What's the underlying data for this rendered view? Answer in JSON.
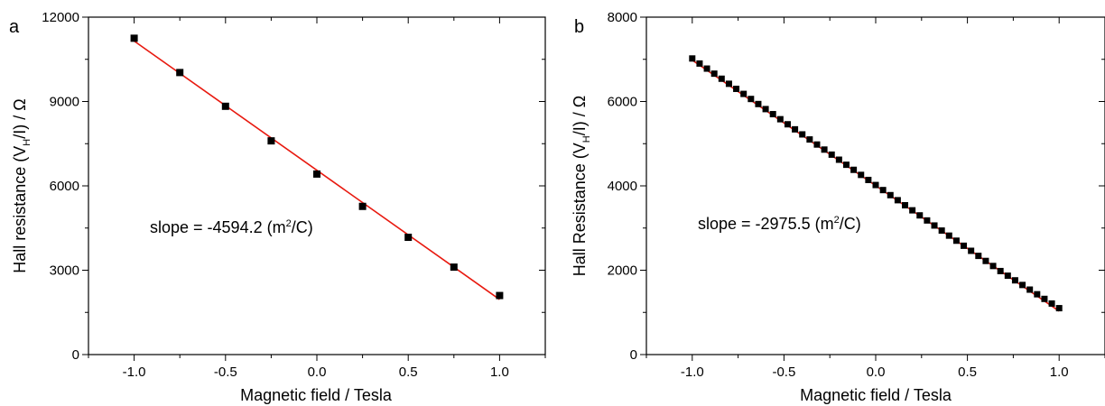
{
  "chart_data": [
    {
      "panel": "a",
      "type": "scatter",
      "xlabel": "Magnetic field / Tesla",
      "ylabel": {
        "pre": "Hall resistance (V",
        "sub": "H",
        "post": "/I) / Ω"
      },
      "xlim": [
        -1.25,
        1.25
      ],
      "ylim": [
        0,
        12000
      ],
      "xticks": [
        -1.0,
        -0.5,
        0.0,
        0.5,
        1.0
      ],
      "xtick_labels": [
        "-1.0",
        "-0.5",
        "0.0",
        "0.5",
        "1.0"
      ],
      "yticks": [
        0,
        3000,
        6000,
        9000,
        12000
      ],
      "ytick_labels": [
        "0",
        "3000",
        "6000",
        "9000",
        "12000"
      ],
      "annotation": {
        "pre": "slope = -4594.2 (m",
        "sup": "2",
        "post": "/C)"
      },
      "series": [
        {
          "kind": "points",
          "color": "#000000",
          "x": [
            -1.0,
            -0.75,
            -0.5,
            -0.25,
            0.0,
            0.25,
            0.5,
            0.75,
            1.0
          ],
          "y": [
            11250,
            10030,
            8830,
            7600,
            6420,
            5270,
            4170,
            3110,
            2100
          ]
        },
        {
          "kind": "fit",
          "color": "#e8190f",
          "x": [
            -1.0,
            1.0
          ],
          "y": [
            11150,
            1960
          ]
        }
      ]
    },
    {
      "panel": "b",
      "type": "scatter",
      "xlabel": "Magnetic field / Tesla",
      "ylabel": {
        "pre": "Hall Resistance (V",
        "sub": "H",
        "post": "/I) / Ω"
      },
      "xlim": [
        -1.25,
        1.25
      ],
      "ylim": [
        0,
        8000
      ],
      "xticks": [
        -1.0,
        -0.5,
        0.0,
        0.5,
        1.0
      ],
      "xtick_labels": [
        "-1.0",
        "-0.5",
        "0.0",
        "0.5",
        "1.0"
      ],
      "yticks": [
        0,
        2000,
        4000,
        6000,
        8000
      ],
      "ytick_labels": [
        "0",
        "2000",
        "4000",
        "6000",
        "8000"
      ],
      "annotation": {
        "pre": "slope = -2975.5 (m",
        "sup": "2",
        "post": "/C)"
      },
      "series": [
        {
          "kind": "points",
          "color": "#000000",
          "x": [
            -1.0,
            -0.96,
            -0.92,
            -0.88,
            -0.84,
            -0.8,
            -0.76,
            -0.72,
            -0.68,
            -0.64,
            -0.6,
            -0.56,
            -0.52,
            -0.48,
            -0.44,
            -0.4,
            -0.36,
            -0.32,
            -0.28,
            -0.24,
            -0.2,
            -0.16,
            -0.12,
            -0.08,
            -0.04,
            0.0,
            0.04,
            0.08,
            0.12,
            0.16,
            0.2,
            0.24,
            0.28,
            0.32,
            0.36,
            0.4,
            0.44,
            0.48,
            0.52,
            0.56,
            0.6,
            0.64,
            0.68,
            0.72,
            0.76,
            0.8,
            0.84,
            0.88,
            0.92,
            0.96,
            1.0
          ],
          "y": [
            7020,
            6900,
            6780,
            6660,
            6540,
            6420,
            6300,
            6180,
            6060,
            5940,
            5820,
            5700,
            5580,
            5460,
            5340,
            5220,
            5100,
            4980,
            4860,
            4740,
            4620,
            4500,
            4380,
            4260,
            4140,
            4020,
            3900,
            3780,
            3660,
            3540,
            3420,
            3300,
            3180,
            3060,
            2940,
            2820,
            2700,
            2580,
            2460,
            2340,
            2220,
            2100,
            1980,
            1870,
            1760,
            1650,
            1540,
            1430,
            1320,
            1210,
            1100
          ]
        },
        {
          "kind": "fit",
          "color": "#e8190f",
          "x": [
            -1.0,
            1.0
          ],
          "y": [
            6980,
            1030
          ]
        }
      ]
    }
  ]
}
